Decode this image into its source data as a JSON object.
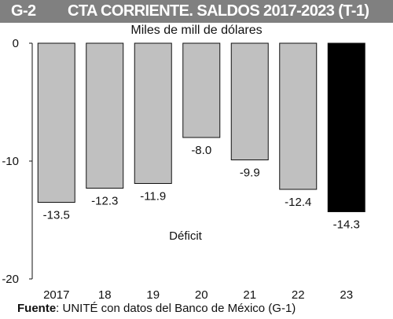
{
  "header": {
    "code": "G-2",
    "title": "CTA CORRIENTE. SALDOS 2017-2023 (T-1)"
  },
  "source": {
    "label": "Fuente",
    "text": ": UNITÉ con datos del Banco de México (G-1)"
  },
  "chart_data": {
    "type": "bar",
    "title": "CTA CORRIENTE. SALDOS 2017-2023 (T-1)",
    "subtitle": "Miles de mill de dólares",
    "categories": [
      "2017",
      "18",
      "19",
      "20",
      "21",
      "22",
      "23"
    ],
    "values": [
      -13.5,
      -12.3,
      -11.9,
      -8.0,
      -9.9,
      -12.4,
      -14.3
    ],
    "value_labels": [
      "-13.5",
      "-12.3",
      "-11.9",
      "-8.0",
      "-9.9",
      "-12.4",
      "-14.3"
    ],
    "ylim": [
      -20,
      0
    ],
    "yticks": [
      0,
      -10,
      -20
    ],
    "ytick_labels": [
      "0",
      "-10",
      "-20"
    ],
    "annotation": "Déficit",
    "colors": {
      "default": "#c0c0c0",
      "highlight": "#000000",
      "highlight_index": 6
    },
    "grid": false,
    "legend": "none"
  }
}
